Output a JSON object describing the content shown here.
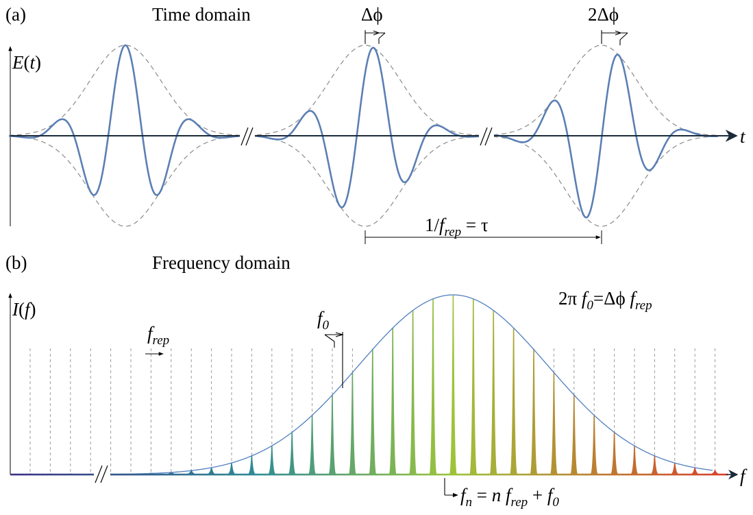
{
  "panel_a": {
    "tag": "(a)",
    "title": "Time domain",
    "y_axis_label": "E(t)",
    "x_axis_label": "t",
    "phase_label_1": "Δϕ",
    "phase_label_2": "2Δϕ",
    "period_label": {
      "prefix": "1/",
      "f": "f",
      "sub": "rep",
      "suffix": " = τ"
    },
    "pulses": 3,
    "phase_offsets_rad": [
      0,
      0.8,
      1.6
    ]
  },
  "panel_b": {
    "tag": "(b)",
    "title": "Frequency domain",
    "y_axis_label": "I(f)",
    "x_axis_label": "f",
    "relation": {
      "pre": "2π ",
      "f": "f",
      "sub0": "0",
      "mid": "=Δϕ ",
      "f2": "f",
      "sub_rep": "rep"
    },
    "frep_label": {
      "f": "f",
      "sub": "rep"
    },
    "f0_label": {
      "f": "f",
      "sub": "0"
    },
    "fn_label": {
      "f": "f",
      "sub_n": "n",
      "eq": " = ",
      "n": "n",
      "f2": "f",
      "sub_rep": "rep",
      "plus": " + ",
      "f3": "f",
      "sub0": "0"
    },
    "comb_lines": 35,
    "envelope_peak_index": 21,
    "envelope_width_lines": 4.7,
    "colors": {
      "pulse": "#5b7fb4",
      "axis": "#1a2a3a",
      "envelope_time": "#8a8a8a",
      "envelope_freq": "#4f7fbf",
      "comb_start": "#3c2d84",
      "comb_mid": "#9dc43a",
      "comb_end": "#d8402a"
    }
  }
}
